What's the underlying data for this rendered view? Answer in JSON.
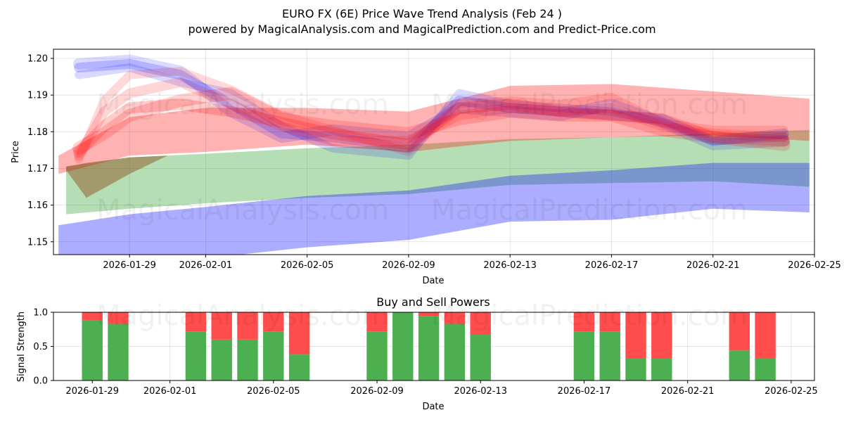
{
  "titles": {
    "main": "EURO FX (6E) Price Wave Trend Analysis (Feb 24 )",
    "subtitle": "powered by MagicalAnalysis.com and MagicalPrediction.com and Predict-Price.com"
  },
  "watermarks": [
    "MagicalAnalysis.com",
    "MagicalPrediction.com"
  ],
  "colors": {
    "green": "#2ca02c",
    "blue": "#0000ff",
    "red": "#ff0000",
    "bar_buy": "#4caf50",
    "bar_sell": "#ff4d4d"
  },
  "chart_data": [
    {
      "type": "area",
      "name": "price-wave",
      "xlabel": "Date",
      "ylabel": "Price",
      "xlim": [
        "2026-01-26",
        "2026-02-25"
      ],
      "ylim": [
        1.1465,
        1.2025
      ],
      "grid": true,
      "x_tick_labels": [
        "2026-01-29",
        "2026-02-01",
        "2026-02-05",
        "2026-02-09",
        "2026-02-13",
        "2026-02-17",
        "2026-02-21",
        "2026-02-25"
      ],
      "y_tick_labels": [
        "1.15",
        "1.16",
        "1.17",
        "1.18",
        "1.19",
        "1.20"
      ],
      "x_ticks_day": [
        3,
        6,
        10,
        14,
        18,
        22,
        26,
        30
      ],
      "y_ticks": [
        1.15,
        1.16,
        1.17,
        1.18,
        1.19,
        1.2
      ],
      "bands": [
        {
          "name": "green band",
          "color": "#2ca02c",
          "opacity": 0.35,
          "x": [
            0.5,
            3,
            6,
            10,
            14,
            18,
            22,
            26,
            29.8
          ],
          "upper": [
            1.1705,
            1.173,
            1.174,
            1.1755,
            1.1765,
            1.178,
            1.1785,
            1.1795,
            1.1805
          ],
          "lower": [
            1.1575,
            1.159,
            1.1605,
            1.162,
            1.163,
            1.1655,
            1.166,
            1.1665,
            1.165
          ]
        },
        {
          "name": "blue band",
          "color": "#0000ff",
          "opacity": 0.32,
          "x": [
            0.2,
            3,
            6,
            10,
            14,
            18,
            22,
            26,
            29.8
          ],
          "upper": [
            1.1545,
            1.1575,
            1.1595,
            1.1625,
            1.164,
            1.168,
            1.1695,
            1.1715,
            1.1715
          ],
          "lower": [
            1.1425,
            1.1435,
            1.1455,
            1.1485,
            1.1505,
            1.1555,
            1.156,
            1.159,
            1.158
          ]
        },
        {
          "name": "red band",
          "color": "#ff0000",
          "opacity": 0.3,
          "x": [
            0.2,
            3,
            6,
            10,
            14,
            18,
            22,
            26,
            29.8
          ],
          "upper": [
            1.1735,
            1.184,
            1.1865,
            1.1865,
            1.1855,
            1.1925,
            1.193,
            1.191,
            1.189
          ],
          "lower": [
            1.1685,
            1.1735,
            1.1745,
            1.1765,
            1.1745,
            1.1775,
            1.1785,
            1.179,
            1.1775
          ]
        },
        {
          "name": "brown band",
          "color": "#8b4513",
          "opacity": 0.45,
          "x": [
            0.5,
            1.3,
            3,
            4.5
          ],
          "upper": [
            1.1705,
            1.1715,
            1.173,
            1.1735
          ],
          "lower": [
            1.1695,
            1.162,
            1.1685,
            1.1735
          ]
        }
      ],
      "wave_lines": [
        {
          "color": "#0000ff",
          "opacity": 0.18,
          "width": 14,
          "x": [
            1,
            3,
            5,
            7,
            9,
            11,
            14,
            16,
            18,
            20,
            22,
            24,
            26,
            28.8
          ],
          "y": [
            1.1975,
            1.1985,
            1.1955,
            1.1875,
            1.1795,
            1.1785,
            1.1755,
            1.1885,
            1.1865,
            1.1855,
            1.1845,
            1.1835,
            1.1775,
            1.1795
          ]
        },
        {
          "color": "#0000ff",
          "opacity": 0.15,
          "width": 12,
          "x": [
            1,
            3,
            5,
            7,
            9,
            11,
            14,
            16,
            18,
            20,
            22,
            24,
            26,
            28.8
          ],
          "y": [
            1.1955,
            1.1975,
            1.1935,
            1.1905,
            1.1815,
            1.1755,
            1.1735,
            1.1905,
            1.1875,
            1.1865,
            1.1855,
            1.1825,
            1.1775,
            1.1785
          ]
        },
        {
          "color": "#0000ff",
          "opacity": 0.14,
          "width": 16,
          "x": [
            1,
            3,
            5,
            7,
            9,
            11,
            14,
            16,
            18,
            20,
            22,
            24,
            26,
            28.8
          ],
          "y": [
            1.1985,
            1.1995,
            1.1965,
            1.1855,
            1.1785,
            1.1805,
            1.1785,
            1.1865,
            1.1855,
            1.1845,
            1.1875,
            1.1825,
            1.1765,
            1.1775
          ]
        },
        {
          "color": "#ff0000",
          "opacity": 0.2,
          "width": 16,
          "x": [
            1,
            2,
            3,
            5,
            7,
            9,
            11,
            14,
            16,
            18,
            20,
            22,
            24,
            26,
            28.8
          ],
          "y": [
            1.1745,
            1.1815,
            1.1865,
            1.1875,
            1.1855,
            1.1825,
            1.1795,
            1.1765,
            1.1865,
            1.1875,
            1.1855,
            1.1845,
            1.1835,
            1.1785,
            1.1775
          ]
        },
        {
          "color": "#ff0000",
          "opacity": 0.16,
          "width": 14,
          "x": [
            1,
            2,
            3,
            5,
            7,
            9,
            11,
            14,
            16,
            18,
            20,
            22,
            24,
            26,
            28.8
          ],
          "y": [
            1.1735,
            1.1855,
            1.1905,
            1.1935,
            1.1875,
            1.1815,
            1.1775,
            1.1775,
            1.1845,
            1.1865,
            1.1855,
            1.1865,
            1.1815,
            1.1795,
            1.1785
          ]
        },
        {
          "color": "#ff0000",
          "opacity": 0.18,
          "width": 18,
          "x": [
            1,
            2,
            3,
            5,
            7,
            9,
            11,
            14,
            16,
            18,
            20,
            22,
            24,
            26,
            28.8
          ],
          "y": [
            1.1755,
            1.1795,
            1.1845,
            1.1885,
            1.1905,
            1.1835,
            1.1815,
            1.1795,
            1.1835,
            1.1855,
            1.1845,
            1.1845,
            1.1805,
            1.1785,
            1.1765
          ]
        },
        {
          "color": "#ff0000",
          "opacity": 0.15,
          "width": 12,
          "x": [
            1,
            2,
            3,
            5,
            7,
            9,
            11,
            14,
            16,
            18,
            20,
            22,
            24,
            26,
            28.8
          ],
          "y": [
            1.1725,
            1.1885,
            1.1955,
            1.1965,
            1.1915,
            1.1845,
            1.1805,
            1.1745,
            1.1875,
            1.1885,
            1.1875,
            1.1895,
            1.1825,
            1.1805,
            1.1805
          ]
        }
      ]
    },
    {
      "type": "bar",
      "name": "buy-sell-powers",
      "title": "Buy and Sell Powers",
      "xlabel": "Date",
      "ylabel": "Signal Strength",
      "ylim": [
        0,
        1.0
      ],
      "grid": true,
      "y_tick_labels": [
        "0.0",
        "0.5",
        "1.0"
      ],
      "x_tick_labels": [
        "2026-01-29",
        "2026-02-01",
        "2026-02-05",
        "2026-02-09",
        "2026-02-13",
        "2026-02-17",
        "2026-02-21",
        "2026-02-25"
      ],
      "categories": [
        "2026-01-29",
        "2026-01-30",
        "2026-02-02",
        "2026-02-03",
        "2026-02-04",
        "2026-02-05",
        "2026-02-06",
        "2026-02-09",
        "2026-02-10",
        "2026-02-11",
        "2026-02-12",
        "2026-02-13",
        "2026-02-17",
        "2026-02-18",
        "2026-02-19",
        "2026-02-20",
        "2026-02-23",
        "2026-02-24"
      ],
      "series": [
        {
          "name": "Buy",
          "color": "#4caf50",
          "values": [
            0.88,
            0.83,
            0.72,
            0.6,
            0.6,
            0.72,
            0.38,
            0.72,
            1.0,
            0.94,
            0.83,
            0.67,
            0.72,
            0.72,
            0.33,
            0.33,
            0.44,
            0.33
          ]
        },
        {
          "name": "Sell",
          "color": "#ff4d4d",
          "values": [
            0.12,
            0.17,
            0.28,
            0.4,
            0.4,
            0.28,
            0.62,
            0.28,
            0.0,
            0.06,
            0.17,
            0.33,
            0.28,
            0.28,
            0.67,
            0.67,
            0.56,
            0.67
          ]
        }
      ]
    }
  ]
}
